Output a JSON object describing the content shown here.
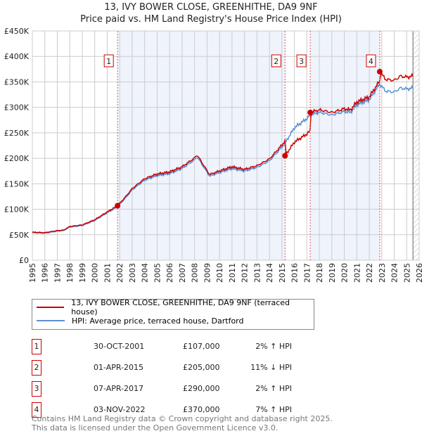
{
  "chart_data": {
    "type": "line",
    "title": "13, IVY BOWER CLOSE, GREENHITHE, DA9 9NF",
    "subtitle": "Price paid vs. HM Land Registry's House Price Index (HPI)",
    "xlim": [
      1995,
      2026
    ],
    "ylim": [
      0,
      450000
    ],
    "x_ticks": [
      "1995",
      "1996",
      "1997",
      "1998",
      "1999",
      "2000",
      "2001",
      "2002",
      "2003",
      "2004",
      "2005",
      "2006",
      "2007",
      "2008",
      "2009",
      "2010",
      "2011",
      "2012",
      "2013",
      "2014",
      "2015",
      "2016",
      "2017",
      "2018",
      "2019",
      "2020",
      "2021",
      "2022",
      "2023",
      "2024",
      "2025",
      "2026"
    ],
    "y_ticks": [
      {
        "v": 0,
        "label": "£0"
      },
      {
        "v": 50000,
        "label": "£50K"
      },
      {
        "v": 100000,
        "label": "£100K"
      },
      {
        "v": 150000,
        "label": "£150K"
      },
      {
        "v": 200000,
        "label": "£200K"
      },
      {
        "v": 250000,
        "label": "£250K"
      },
      {
        "v": 300000,
        "label": "£300K"
      },
      {
        "v": 350000,
        "label": "£350K"
      },
      {
        "v": 400000,
        "label": "£400K"
      },
      {
        "v": 450000,
        "label": "£450K"
      }
    ],
    "hpi_series": {
      "name": "HPI: Average price, terraced house, Dartford",
      "color": "#5b8fd4",
      "x": [
        1995,
        1996,
        1996.5,
        1997,
        1997.5,
        1998,
        1999,
        2000,
        2001,
        2001.83,
        2002.5,
        2003,
        2004,
        2005,
        2006,
        2007,
        2008,
        2008.2,
        2009.2,
        2010,
        2011,
        2012,
        2013,
        2014,
        2015,
        2015.25,
        2016,
        2017,
        2017.27,
        2018,
        2019,
        2020,
        2020.5,
        2021,
        2022,
        2022.84,
        2023.3,
        2024,
        2024.5,
        2025,
        2025.5
      ],
      "y": [
        54000,
        53000,
        55000,
        57000,
        58000,
        65000,
        68000,
        78000,
        93000,
        105000,
        123000,
        138000,
        157000,
        166000,
        170000,
        180000,
        197000,
        203000,
        165000,
        172000,
        180000,
        175000,
        182000,
        195000,
        222000,
        230000,
        260000,
        278000,
        285000,
        290000,
        285000,
        292000,
        290000,
        305000,
        315000,
        346000,
        332000,
        330000,
        338000,
        336000,
        338000
      ]
    },
    "property_series": {
      "name": "13, IVY BOWER CLOSE, GREENHITHE, DA9 9NF (terraced house)",
      "color": "#cc0000"
    },
    "sales": [
      {
        "n": "1",
        "x": 2001.83,
        "date": "30-OCT-2001",
        "price": 107000,
        "price_label": "£107,000",
        "hpi": "2% ↑ HPI"
      },
      {
        "n": "2",
        "x": 2015.25,
        "date": "01-APR-2015",
        "price": 205000,
        "price_label": "£205,000",
        "hpi": "11% ↓ HPI"
      },
      {
        "n": "3",
        "x": 2017.27,
        "date": "07-APR-2017",
        "price": 290000,
        "price_label": "£290,000",
        "hpi": "2% ↑ HPI"
      },
      {
        "n": "4",
        "x": 2022.84,
        "date": "03-NOV-2022",
        "price": 370000,
        "price_label": "£370,000",
        "hpi": "7% ↑ HPI"
      }
    ],
    "forecast_start": 2025.5,
    "legend_position": "below"
  },
  "footer": {
    "line1": "Contains HM Land Registry data © Crown copyright and database right 2025.",
    "line2": "This data is licensed under the Open Government Licence v3.0."
  }
}
